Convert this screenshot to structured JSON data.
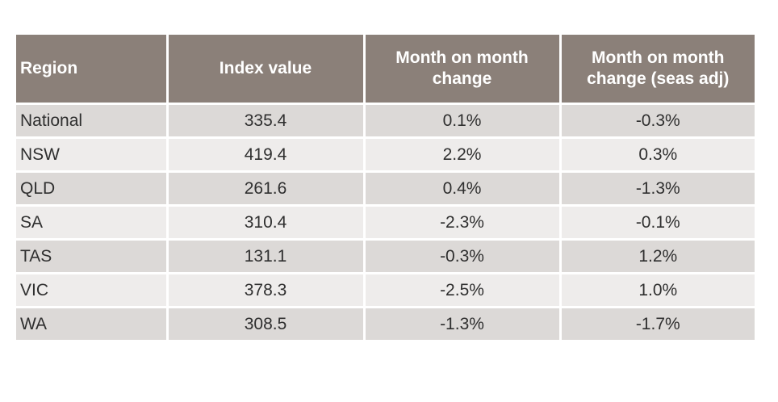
{
  "table": {
    "headers": [
      "Region",
      "Index value",
      "Month on month change",
      "Month on month change (seas adj)"
    ],
    "rows": [
      [
        "National",
        "335.4",
        "0.1%",
        "-0.3%"
      ],
      [
        "NSW",
        "419.4",
        "2.2%",
        "0.3%"
      ],
      [
        "QLD",
        "261.6",
        "0.4%",
        "-1.3%"
      ],
      [
        "SA",
        "310.4",
        "-2.3%",
        "-0.1%"
      ],
      [
        "TAS",
        "131.1",
        "-0.3%",
        "1.2%"
      ],
      [
        "VIC",
        "378.3",
        "-2.5%",
        "1.0%"
      ],
      [
        "WA",
        "308.5",
        "-1.3%",
        "-1.7%"
      ]
    ]
  },
  "colors": {
    "header_bg": "#8b8079",
    "header_text": "#ffffff",
    "row_odd_bg": "#dcd9d7",
    "row_even_bg": "#eeeceb",
    "cell_text": "#2f2f2f"
  }
}
